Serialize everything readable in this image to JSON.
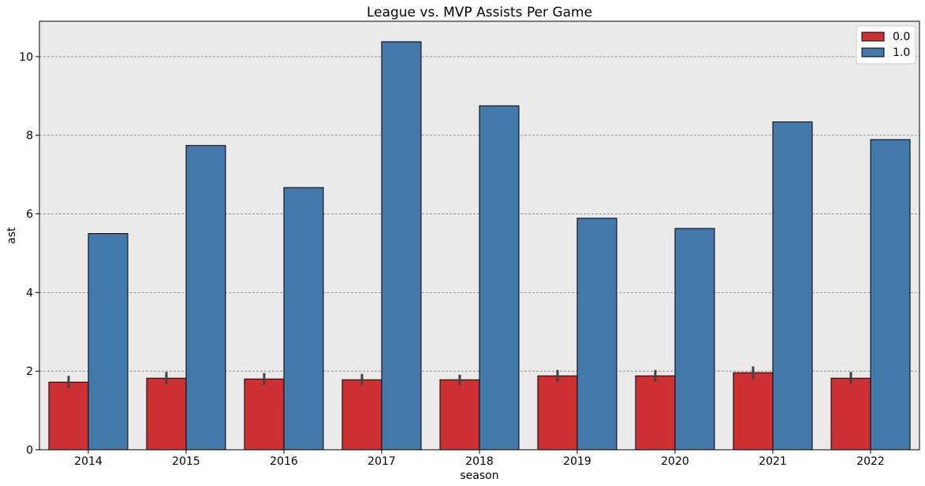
{
  "chart_data": {
    "type": "bar",
    "title": "League vs. MVP Assists Per Game",
    "xlabel": "season",
    "ylabel": "ast",
    "categories": [
      "2014",
      "2015",
      "2016",
      "2017",
      "2018",
      "2019",
      "2020",
      "2021",
      "2022"
    ],
    "ylim": [
      0,
      10.9
    ],
    "yticks": [
      0,
      2,
      4,
      6,
      8,
      10
    ],
    "grid": "y-dashed",
    "legend_position": "top-right",
    "series": [
      {
        "name": "0.0",
        "color": "#cc3033",
        "values": [
          1.72,
          1.82,
          1.8,
          1.78,
          1.78,
          1.88,
          1.88,
          1.96,
          1.82
        ],
        "error_low": [
          1.57,
          1.66,
          1.65,
          1.63,
          1.63,
          1.73,
          1.73,
          1.8,
          1.67
        ],
        "error_high": [
          1.88,
          1.98,
          1.95,
          1.93,
          1.91,
          2.03,
          2.03,
          2.12,
          1.98
        ]
      },
      {
        "name": "1.0",
        "color": "#4279aa",
        "values": [
          5.5,
          7.74,
          6.67,
          10.38,
          8.75,
          5.89,
          5.63,
          8.34,
          7.89
        ]
      }
    ]
  }
}
